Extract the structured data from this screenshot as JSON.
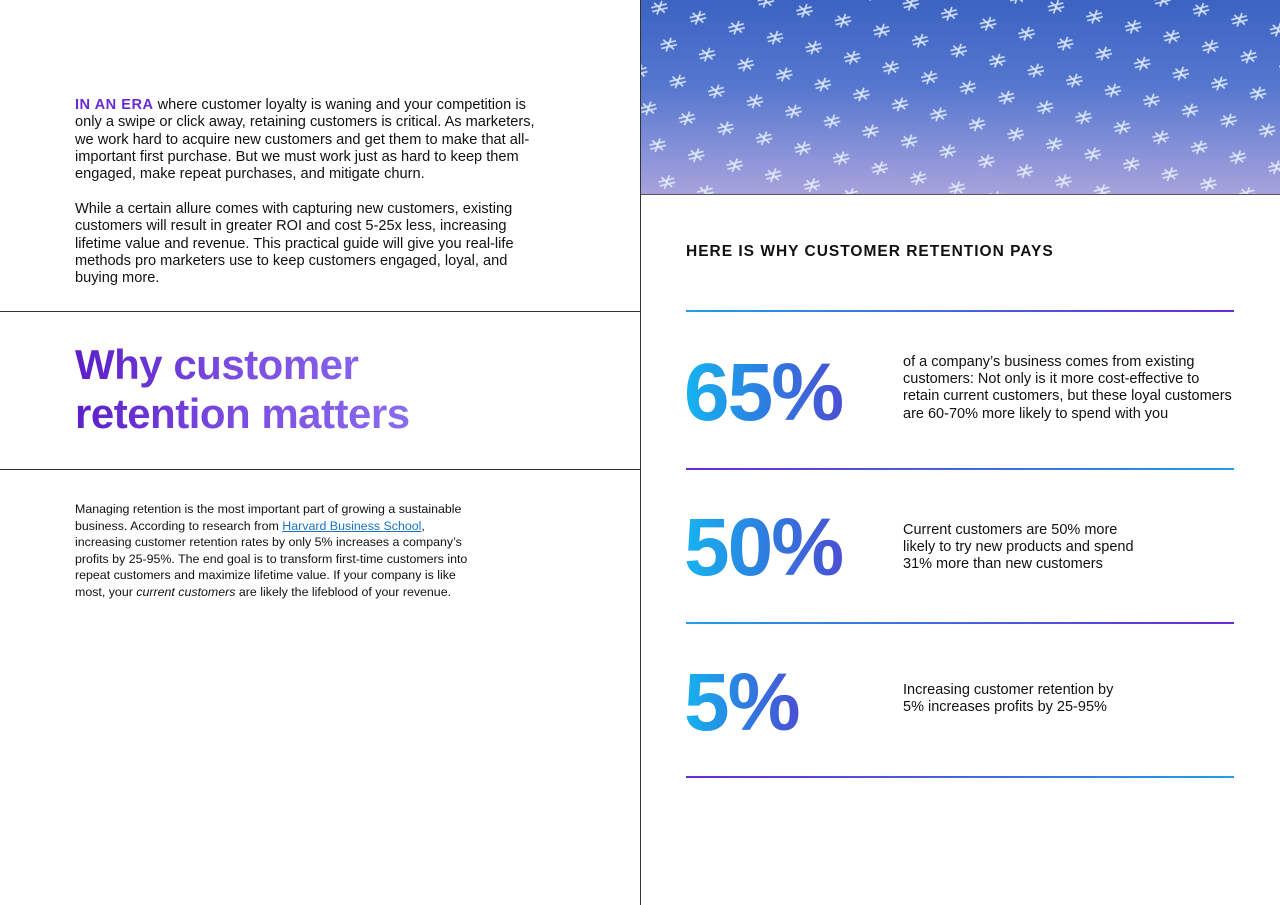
{
  "left": {
    "intro_lead": "IN AN ERA",
    "intro_rest": " where customer loyalty is waning and your competition is only a swipe or click away, retaining customers is critical. As marketers, we work hard to acquire new customers and get them to make that all-important first purchase. But we must work just as hard to keep them engaged, make repeat purchases, and mitigate churn.",
    "intro_2": "While a certain allure comes with capturing new customers, existing customers will result in greater ROI and cost 5-25x less, increasing lifetime value and revenue. This practical guide will give you real-life methods pro marketers use to keep customers engaged, loyal, and buying more.",
    "title_lines": [
      "Why customer",
      "retention matters"
    ],
    "body": {
      "part_1": "Managing retention is the most important part of growing a sustainable business. According to research from ",
      "link": "Harvard Business School",
      "part_2": ", increasing customer retention rates by only 5% increases a company’s profits by 25-95%. The end goal is to transform first-time customers into repeat customers and maximize lifetime value.  If your company is like most, your ",
      "emphasis": "current customers",
      "part_3": " are likely the lifeblood of your revenue."
    }
  },
  "right": {
    "heading": "HERE IS WHY CUSTOMER RETENTION PAYS",
    "stats": [
      {
        "value": "65%",
        "text": "of a company’s business comes from existing customers: Not only is it more cost-effective to retain current customers, but these loyal customers are 60-70% more likely to spend with you"
      },
      {
        "value": "50%",
        "text": "Current customers are 50% more likely to try new products and spend 31% more than new customers"
      },
      {
        "value": "5%",
        "text": "Increasing customer retention by 5% increases profits by 25-95%"
      }
    ]
  }
}
